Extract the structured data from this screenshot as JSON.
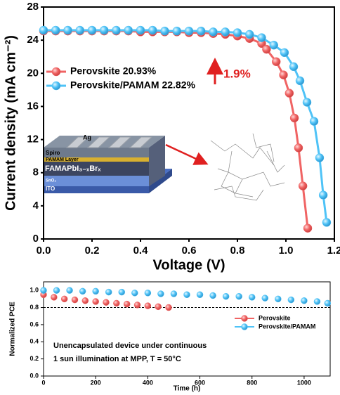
{
  "chart_data": [
    {
      "type": "line",
      "x_label": "Voltage (V)",
      "y_label": "Current density (mA cm⁻²)",
      "xlim": [
        0,
        1.2
      ],
      "ylim": [
        0,
        28
      ],
      "xticks": [
        {
          "value": 0,
          "label": "0.0"
        },
        0.2,
        0.4,
        0.6,
        0.8,
        {
          "value": 1,
          "label": "1.0"
        },
        1.2
      ],
      "yticks": [
        0,
        4,
        8,
        12,
        16,
        20,
        24,
        28
      ],
      "series": [
        {
          "name": "Perovskite 20.93%",
          "color": "#f06464",
          "x": [
            0,
            0.05,
            0.1,
            0.15,
            0.2,
            0.25,
            0.3,
            0.35,
            0.4,
            0.45,
            0.5,
            0.55,
            0.6,
            0.65,
            0.7,
            0.75,
            0.8,
            0.85,
            0.9,
            0.92,
            0.96,
            0.99,
            1.014,
            1.035,
            1.052,
            1.07,
            1.09
          ],
          "values": [
            25.1,
            25.1,
            25.1,
            25.1,
            25.1,
            25.1,
            25.1,
            25.1,
            25.0,
            25.0,
            25.0,
            25.0,
            24.9,
            24.9,
            24.8,
            24.7,
            24.5,
            24.2,
            23.6,
            22.9,
            21.4,
            19.8,
            17.6,
            14.6,
            11.0,
            6.4,
            1.3
          ]
        },
        {
          "name": "Perovskite/PAMAM  22.82%",
          "color": "#4fc3f7",
          "x": [
            0,
            0.05,
            0.1,
            0.15,
            0.2,
            0.25,
            0.3,
            0.35,
            0.4,
            0.45,
            0.5,
            0.55,
            0.6,
            0.65,
            0.7,
            0.75,
            0.8,
            0.85,
            0.9,
            0.95,
            0.994,
            1.032,
            1.058,
            1.087,
            1.116,
            1.139,
            1.154,
            1.168
          ],
          "values": [
            25.2,
            25.2,
            25.2,
            25.2,
            25.2,
            25.2,
            25.2,
            25.2,
            25.2,
            25.2,
            25.1,
            25.1,
            25.1,
            25.1,
            25.0,
            25.0,
            24.9,
            24.7,
            24.3,
            23.4,
            22.5,
            20.8,
            19.1,
            16.5,
            14.2,
            9.8,
            5.3,
            2.0
          ]
        }
      ],
      "annotation": "1.9%",
      "inset_layers": [
        "Ag",
        "Spiro",
        "PAMAM Layer",
        "FAMAPbI₃₋ₓBrₓ",
        "SnO₂",
        "ITO"
      ]
    },
    {
      "type": "scatter",
      "x_label": "Time (h)",
      "y_label": "Normalized PCE",
      "xlim": [
        0,
        1100
      ],
      "ylim": [
        0,
        1.1
      ],
      "xticks": [
        0,
        200,
        400,
        600,
        800,
        1000
      ],
      "yticks": [
        {
          "value": 0,
          "label": "0.0"
        },
        0.2,
        0.4,
        0.6,
        0.8,
        {
          "value": 1,
          "label": "1.0"
        }
      ],
      "reference_line": 0.8,
      "series": [
        {
          "name": "Perovskite",
          "color": "#f06464",
          "x": [
            0,
            40,
            80,
            120,
            160,
            200,
            240,
            280,
            320,
            360,
            400,
            440,
            480
          ],
          "values": [
            0.95,
            0.92,
            0.9,
            0.89,
            0.88,
            0.87,
            0.86,
            0.85,
            0.84,
            0.83,
            0.82,
            0.81,
            0.8
          ]
        },
        {
          "name": "Perovskite/PAMAM",
          "color": "#4fc3f7",
          "x": [
            0,
            50,
            100,
            150,
            200,
            250,
            300,
            350,
            400,
            450,
            500,
            550,
            600,
            650,
            700,
            750,
            800,
            850,
            900,
            950,
            1000,
            1050,
            1090
          ],
          "values": [
            1.0,
            1.0,
            1.0,
            0.99,
            0.99,
            0.98,
            0.98,
            0.97,
            0.97,
            0.96,
            0.96,
            0.95,
            0.95,
            0.94,
            0.93,
            0.93,
            0.92,
            0.91,
            0.9,
            0.89,
            0.88,
            0.87,
            0.85
          ]
        }
      ],
      "annotations": [
        "Unencapsulated device under continuous",
        "1 sun illumination at MPP, T = 50°C"
      ]
    }
  ]
}
